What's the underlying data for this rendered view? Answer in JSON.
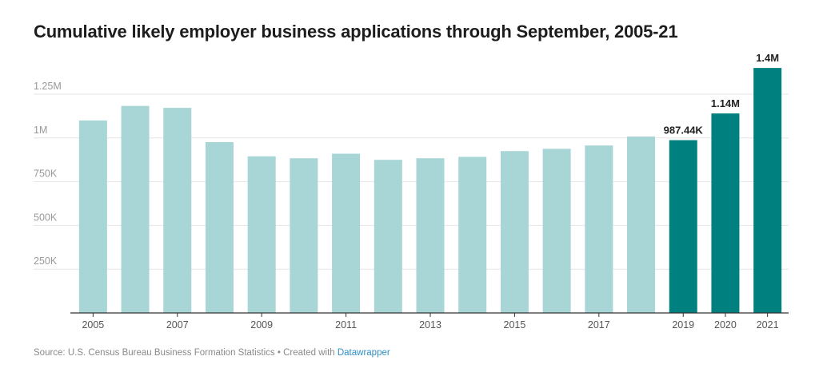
{
  "chart_title": "Cumulative likely employer business applications through September, 2005-21",
  "footer": {
    "source_text": "Source: U.S. Census Bureau Business Formation Statistics • Created with ",
    "link_text": "Datawrapper"
  },
  "colors": {
    "normal_bar": "#a8d5d5",
    "highlight_bar": "#00807f",
    "grid": "#e6e6e6",
    "axis": "#333333",
    "tick_label": "#999999",
    "x_label": "#555555",
    "value_label": "#222222"
  },
  "chart_data": {
    "type": "bar",
    "title": "Cumulative likely employer business applications through September, 2005-21",
    "categories": [
      "2005",
      "2006",
      "2007",
      "2008",
      "2009",
      "2010",
      "2011",
      "2012",
      "2013",
      "2014",
      "2015",
      "2016",
      "2017",
      "2018",
      "2019",
      "2020",
      "2021"
    ],
    "values": [
      1100000,
      1183000,
      1172000,
      976000,
      895000,
      884000,
      910000,
      875000,
      884000,
      892000,
      925000,
      938000,
      957000,
      1008000,
      987440,
      1140000,
      1400000
    ],
    "x_tick_labels": [
      "2005",
      "",
      "2007",
      "",
      "2009",
      "",
      "2011",
      "",
      "2013",
      "",
      "2015",
      "",
      "2017",
      "",
      "2019",
      "2020",
      "2021"
    ],
    "highlighted": [
      "2019",
      "2020",
      "2021"
    ],
    "data_labels": {
      "2019": "987.44K",
      "2020": "1.14M",
      "2021": "1.4M"
    },
    "y_ticks": [
      250000,
      500000,
      750000,
      1000000,
      1250000
    ],
    "y_tick_labels": [
      "250K",
      "500K",
      "750K",
      "1M",
      "1.25M"
    ],
    "ylim": [
      0,
      1400000
    ],
    "grid": true
  }
}
